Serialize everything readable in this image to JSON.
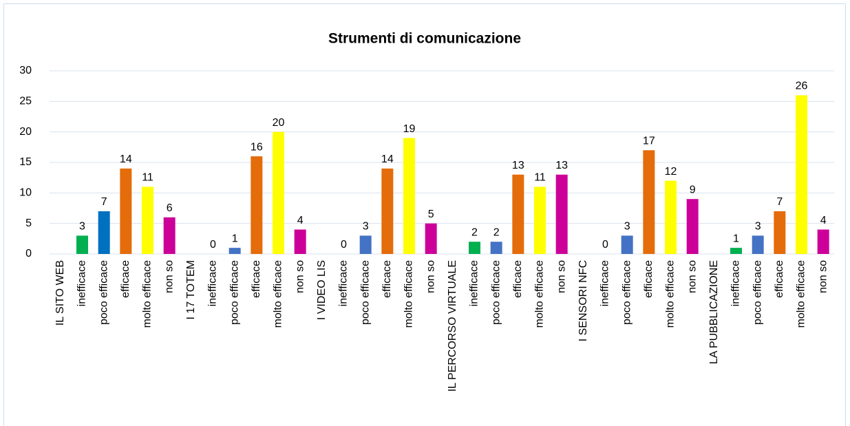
{
  "chart_data": {
    "type": "bar",
    "title": "Strumenti di comunicazione",
    "categories": [
      "IL SITO WEB",
      "inefficace",
      "poco efficace",
      "efficace",
      "molto efficace",
      "non so",
      "I 17 TOTEM",
      "inefficace",
      "poco efficace",
      "efficace",
      "molto efficace",
      "non so",
      "I VIDEO LIS",
      "inefficace",
      "poco efficace",
      "efficace",
      "molto efficace",
      "non so",
      "IL PERCORSO VIRTUALE",
      "inefficace",
      "poco efficace",
      "efficace",
      "molto efficace",
      "non so",
      "I SENSORI NFC",
      "inefficace",
      "poco efficace",
      "efficace",
      "molto efficace",
      "non so",
      "LA PUBBLICAZIONE",
      "inefficace",
      "poco efficace",
      "efficace",
      "molto efficace",
      "non so"
    ],
    "values": [
      null,
      3,
      7,
      14,
      11,
      6,
      null,
      0,
      1,
      16,
      20,
      4,
      null,
      0,
      3,
      14,
      19,
      5,
      null,
      2,
      2,
      13,
      11,
      13,
      null,
      0,
      3,
      17,
      12,
      9,
      null,
      1,
      3,
      7,
      26,
      4
    ],
    "colors": [
      null,
      "#00b050",
      "#0070c0",
      "#e46c0a",
      "#ffff00",
      "#cc0099",
      null,
      "#00b050",
      "#4472c4",
      "#e46c0a",
      "#ffff00",
      "#cc0099",
      null,
      "#00b050",
      "#4472c4",
      "#e46c0a",
      "#ffff00",
      "#cc0099",
      null,
      "#00b050",
      "#4472c4",
      "#e46c0a",
      "#ffff00",
      "#cc0099",
      null,
      "#00b050",
      "#4472c4",
      "#e46c0a",
      "#ffff00",
      "#cc0099",
      null,
      "#00b050",
      "#4472c4",
      "#e46c0a",
      "#ffff00",
      "#cc0099"
    ],
    "ylim": [
      0,
      30
    ],
    "yticks": [
      0,
      5,
      10,
      15,
      20,
      25,
      30
    ],
    "grid": true
  }
}
